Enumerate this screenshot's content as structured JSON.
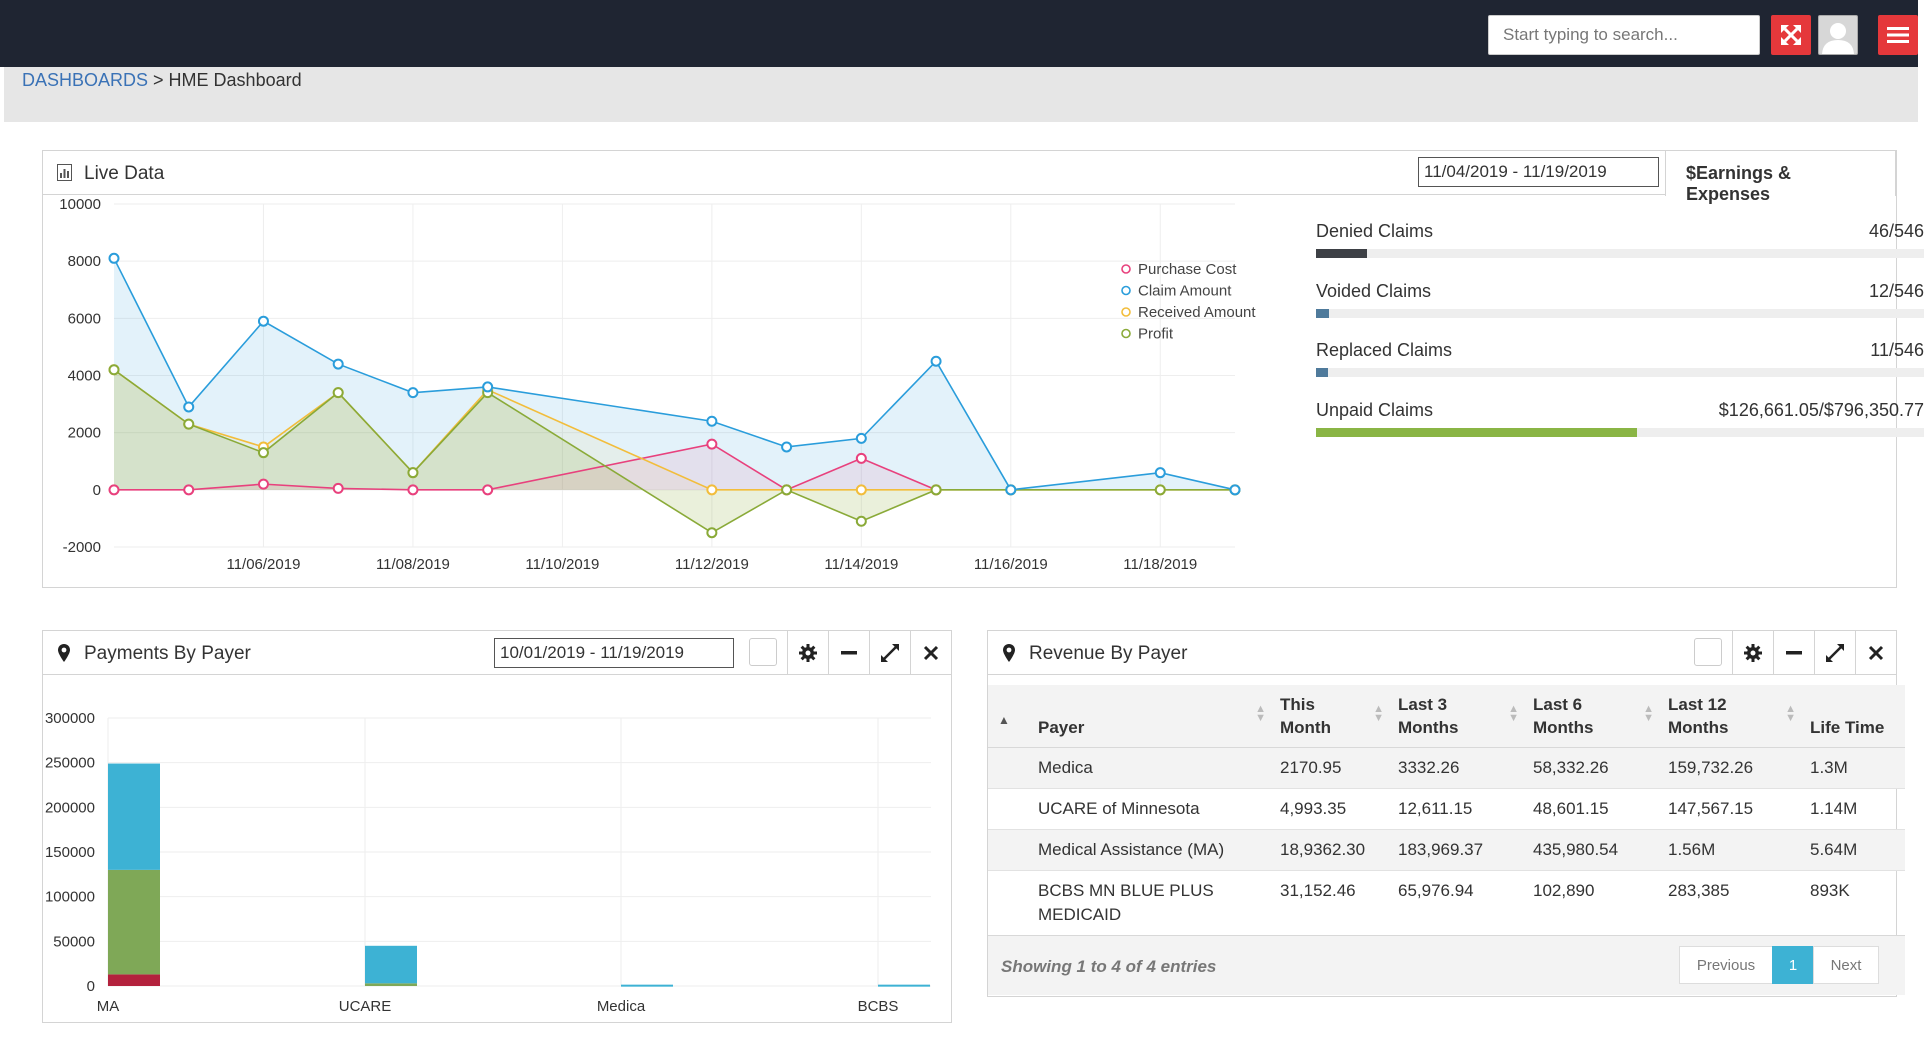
{
  "topbar": {
    "search_placeholder": "Start typing to search...",
    "fullscreen_icon": "fullscreen-toggle-icon",
    "avatar_icon": "user-avatar-icon",
    "menu_icon": "hamburger-menu-icon"
  },
  "breadcrumb": {
    "root": "DASHBOARDS",
    "separator": " > ",
    "current": "HME Dashboard"
  },
  "live_data": {
    "title": "Live Data",
    "date_range": "11/04/2019 - 11/19/2019",
    "tab_label": "$Earnings & Expenses",
    "claims": [
      {
        "label": "Denied Claims",
        "value": "46/546",
        "fraction": 0.084,
        "color": "#3d4045"
      },
      {
        "label": "Voided Claims",
        "value": "12/546",
        "fraction": 0.022,
        "color": "#4f7a9b"
      },
      {
        "label": "Replaced Claims",
        "value": "11/546",
        "fraction": 0.02,
        "color": "#4f7a9b"
      },
      {
        "label": "Unpaid Claims",
        "value": "$126,661.05/$796,350.77",
        "fraction": 0.159,
        "display_fraction": 0.528,
        "color": "#8ab545"
      }
    ]
  },
  "payments_by_payer": {
    "title": "Payments By Payer",
    "date_range": "10/01/2019 - 11/19/2019"
  },
  "revenue_by_payer": {
    "title": "Revenue By Payer",
    "columns": [
      "Payer",
      "This Month",
      "Last 3 Months",
      "Last 6 Months",
      "Last 12 Months",
      "Life Time"
    ],
    "column_lines": [
      [
        "Payer"
      ],
      [
        "This",
        "Month"
      ],
      [
        "Last 3",
        "Months"
      ],
      [
        "Last 6",
        "Months"
      ],
      [
        "Last 12",
        "Months"
      ],
      [
        "Life Time"
      ]
    ],
    "rows": [
      [
        "Medica",
        "2170.95",
        "3332.26",
        "58,332.26",
        "159,732.26",
        "1.3M"
      ],
      [
        "UCARE of Minnesota",
        "4,993.35",
        "12,611.15",
        "48,601.15",
        "147,567.15",
        "1.14M"
      ],
      [
        "Medical Assistance (MA)",
        "18,9362.30",
        "183,969.37",
        "435,980.54",
        "1.56M",
        "5.64M"
      ],
      [
        "BCBS MN BLUE PLUS MEDICAID",
        "31,152.46",
        "65,976.94",
        "102,890",
        "283,385",
        "893K"
      ]
    ],
    "showing": "Showing 1 to 4 of 4 entries",
    "pagination": {
      "previous": "Previous",
      "current": "1",
      "next": "Next"
    }
  },
  "chart_data": [
    {
      "type": "line",
      "x": [
        "11/04/2019",
        "11/05/2019",
        "11/06/2019",
        "11/07/2019",
        "11/08/2019",
        "11/09/2019",
        "11/10/2019",
        "11/11/2019",
        "11/12/2019",
        "11/13/2019",
        "11/14/2019",
        "11/15/2019",
        "11/16/2019",
        "11/17/2019",
        "11/18/2019",
        "11/19/2019"
      ],
      "x_tick_labels": [
        "11/06/2019",
        "11/08/2019",
        "11/10/2019",
        "11/12/2019",
        "11/14/2019",
        "11/16/2019",
        "11/18/2019"
      ],
      "x_ticks": [
        "11/06/2019",
        "11/08/2019",
        "11/10/2019",
        "11/12/2019",
        "11/14/2019",
        "11/16/2019",
        "11/18/2019"
      ],
      "ylim": [
        -2000,
        10000
      ],
      "y_ticks": [
        -2000,
        0,
        2000,
        4000,
        6000,
        8000,
        10000
      ],
      "grid": true,
      "legend_position": "top-right",
      "series": [
        {
          "name": "Purchase Cost",
          "color": "#e8417d",
          "values": [
            0,
            0,
            200,
            50,
            0,
            0,
            null,
            null,
            1600,
            0,
            1100,
            0,
            null,
            null,
            null,
            null
          ]
        },
        {
          "name": "Claim Amount",
          "color": "#2a9ddb",
          "values": [
            8100,
            2900,
            5900,
            4400,
            3400,
            3600,
            null,
            null,
            2400,
            1500,
            1800,
            4500,
            0,
            null,
            600,
            0
          ]
        },
        {
          "name": "Received Amount",
          "color": "#f2bd3b",
          "values": [
            4200,
            2300,
            1500,
            3400,
            600,
            3500,
            null,
            null,
            0,
            0,
            0,
            0,
            0,
            null,
            0,
            0
          ]
        },
        {
          "name": "Profit",
          "color": "#8aaa38",
          "values": [
            4200,
            2300,
            1300,
            3400,
            600,
            3400,
            null,
            null,
            -1500,
            0,
            -1100,
            0,
            0,
            null,
            0,
            0
          ]
        }
      ]
    },
    {
      "type": "bar",
      "stacked": true,
      "categories": [
        "MA",
        "UCARE",
        "Medica",
        "BCBS"
      ],
      "ylim": [
        0,
        300000
      ],
      "y_ticks": [
        0,
        50000,
        100000,
        150000,
        200000,
        250000,
        300000
      ],
      "grid": true,
      "series": [
        {
          "color": "#b3223d",
          "values": [
            13000,
            0,
            0,
            0
          ]
        },
        {
          "color": "#7fa857",
          "values": [
            117000,
            3000,
            0,
            0
          ]
        },
        {
          "color": "#3db2d4",
          "values": [
            119000,
            42000,
            1500,
            1500
          ]
        }
      ]
    }
  ]
}
